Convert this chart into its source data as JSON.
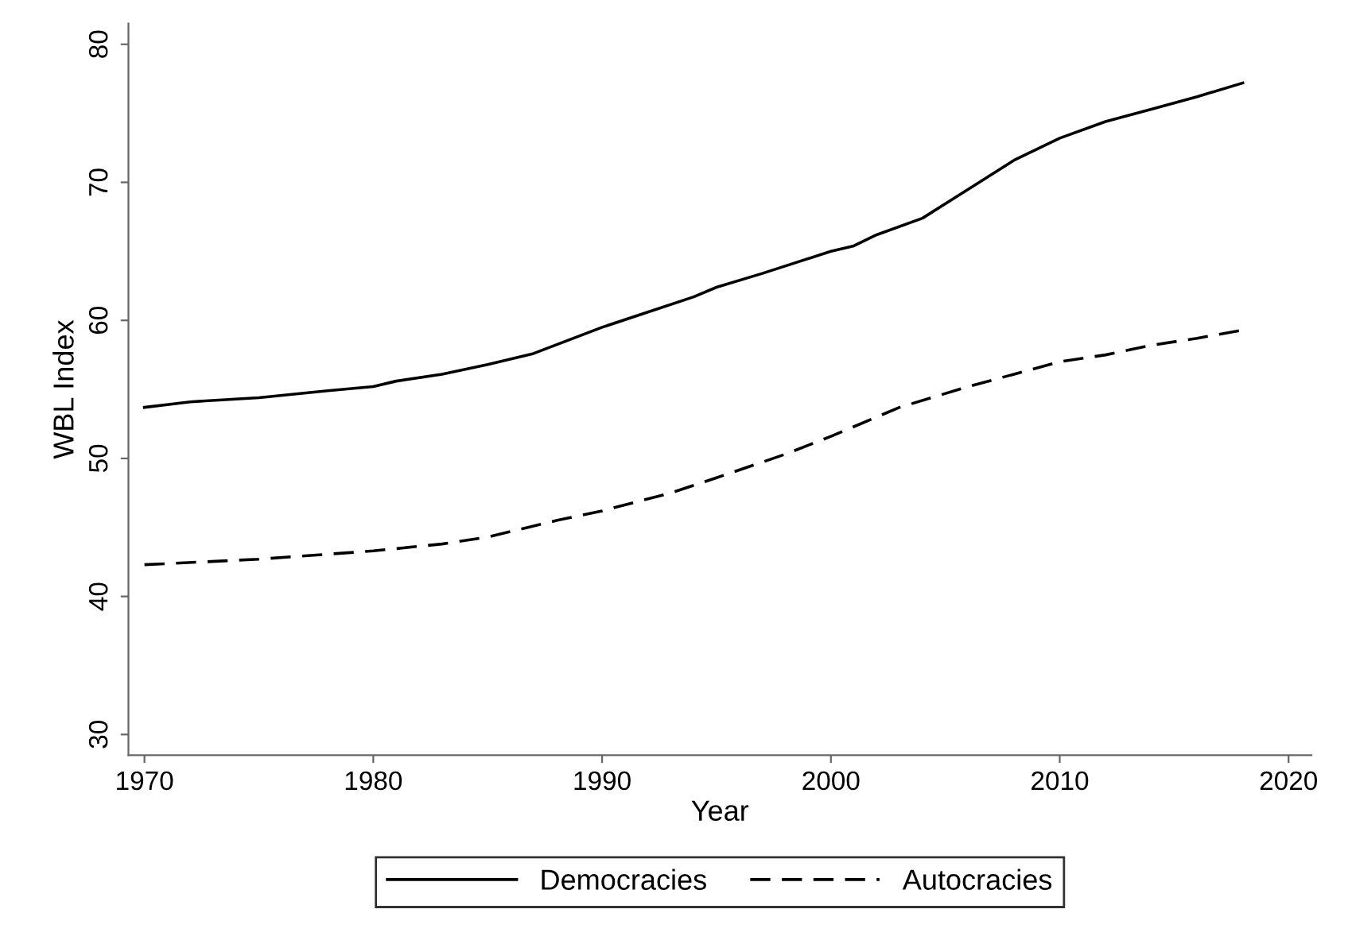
{
  "chart_data": {
    "type": "line",
    "xlabel": "Year",
    "ylabel": "WBL Index",
    "xlim": [
      1969.3,
      2021
    ],
    "xticks": [
      1970,
      1980,
      1990,
      2000,
      2010,
      2020
    ],
    "ylim": [
      28.5,
      81.5
    ],
    "yticks": [
      30,
      40,
      50,
      60,
      70,
      80
    ],
    "grid": false,
    "legend": "bottom",
    "series": [
      {
        "name": "Democracies",
        "color": "#000000",
        "line_style": "solid",
        "x": [
          1970,
          1972,
          1975,
          1978,
          1980,
          1981,
          1983,
          1985,
          1987,
          1990,
          1992,
          1994,
          1995,
          1997,
          2000,
          2001,
          2002,
          2004,
          2006,
          2008,
          2010,
          2012,
          2014,
          2016,
          2018
        ],
        "values": [
          53.7,
          54.1,
          54.4,
          54.9,
          55.2,
          55.6,
          56.1,
          56.8,
          57.6,
          59.5,
          60.6,
          61.7,
          62.4,
          63.4,
          65.0,
          65.4,
          66.2,
          67.4,
          69.5,
          71.6,
          73.2,
          74.4,
          75.3,
          76.2,
          77.2
        ]
      },
      {
        "name": "Autocracies",
        "color": "#000000",
        "line_style": "dashed",
        "x": [
          1970,
          1975,
          1980,
          1983,
          1985,
          1988,
          1990,
          1993,
          1995,
          1998,
          2000,
          2003,
          2006,
          2008,
          2010,
          2012,
          2014,
          2016,
          2018
        ],
        "values": [
          42.3,
          42.7,
          43.3,
          43.8,
          44.3,
          45.5,
          46.2,
          47.5,
          48.6,
          50.3,
          51.6,
          53.7,
          55.2,
          56.1,
          57.0,
          57.5,
          58.2,
          58.7,
          59.3
        ]
      }
    ]
  }
}
